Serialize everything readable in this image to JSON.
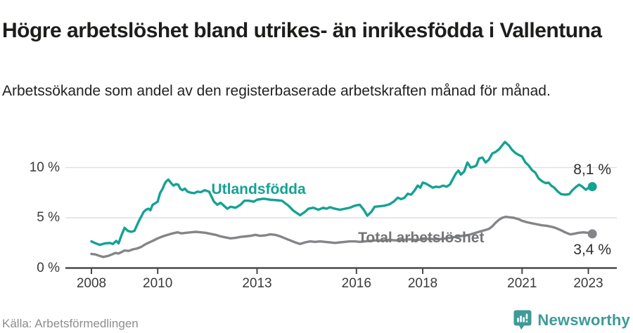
{
  "header": {
    "title": "Högre arbetslöshet bland utrikes- än inrikesfödda i Vallentuna",
    "subtitle": "Arbetssökande som andel av den registerbaserade arbetskraften månad för månad."
  },
  "footer": {
    "source": "Källa: Arbetsförmedlingen",
    "brand_name": "Newsworthy",
    "brand_color": "#3e9b97"
  },
  "colors": {
    "axis": "#4a4a4a",
    "gridline": "#e1e1e1",
    "tick_text": "#3a3a3a",
    "value_label_text": "#2e2e2e"
  },
  "chart_data": {
    "type": "line",
    "title": "Högre arbetslöshet bland utrikes- än inrikesfödda i Vallentuna",
    "subtitle": "Arbetssökande som andel av den registerbaserade arbetskraften månad för månad.",
    "xlabel": "",
    "ylabel": "",
    "grid": true,
    "xlim": [
      2007.2,
      2023.85
    ],
    "ylim": [
      0,
      13
    ],
    "yticks": [
      {
        "value": 0,
        "label": "0 %"
      },
      {
        "value": 5,
        "label": "5 %"
      },
      {
        "value": 10,
        "label": "10 %"
      }
    ],
    "xticks": [
      {
        "value": 2008,
        "label": "2008"
      },
      {
        "value": 2010,
        "label": "2010"
      },
      {
        "value": 2013,
        "label": "2013"
      },
      {
        "value": 2016,
        "label": "2016"
      },
      {
        "value": 2018,
        "label": "2018"
      },
      {
        "value": 2021,
        "label": "2021"
      },
      {
        "value": 2023,
        "label": "2023"
      }
    ],
    "series": [
      {
        "name": "Utlandsfödda",
        "color": "#15a294",
        "label_color": "#15a294",
        "label_at": [
          2011.62,
          7.65
        ],
        "end_label": "8,1 %",
        "end_label_side": "above",
        "points": [
          [
            2008.0,
            2.65
          ],
          [
            2008.1,
            2.5
          ],
          [
            2008.25,
            2.3
          ],
          [
            2008.4,
            2.45
          ],
          [
            2008.55,
            2.5
          ],
          [
            2008.65,
            2.4
          ],
          [
            2008.75,
            2.7
          ],
          [
            2008.82,
            2.45
          ],
          [
            2008.9,
            3.2
          ],
          [
            2009.0,
            4.0
          ],
          [
            2009.1,
            3.7
          ],
          [
            2009.2,
            3.6
          ],
          [
            2009.3,
            3.7
          ],
          [
            2009.38,
            4.3
          ],
          [
            2009.45,
            4.8
          ],
          [
            2009.5,
            5.1
          ],
          [
            2009.58,
            5.6
          ],
          [
            2009.65,
            5.8
          ],
          [
            2009.72,
            5.9
          ],
          [
            2009.78,
            5.75
          ],
          [
            2009.85,
            6.3
          ],
          [
            2009.95,
            6.5
          ],
          [
            2010.0,
            6.6
          ],
          [
            2010.07,
            7.45
          ],
          [
            2010.15,
            7.9
          ],
          [
            2010.2,
            8.3
          ],
          [
            2010.25,
            8.6
          ],
          [
            2010.32,
            8.8
          ],
          [
            2010.42,
            8.4
          ],
          [
            2010.48,
            8.2
          ],
          [
            2010.55,
            8.35
          ],
          [
            2010.62,
            8.3
          ],
          [
            2010.68,
            7.9
          ],
          [
            2010.75,
            7.75
          ],
          [
            2010.82,
            7.9
          ],
          [
            2010.9,
            7.6
          ],
          [
            2011.0,
            7.5
          ],
          [
            2011.1,
            7.45
          ],
          [
            2011.2,
            7.6
          ],
          [
            2011.3,
            7.55
          ],
          [
            2011.42,
            7.75
          ],
          [
            2011.55,
            7.6
          ],
          [
            2011.7,
            6.6
          ],
          [
            2011.8,
            6.3
          ],
          [
            2011.9,
            6.5
          ],
          [
            2012.0,
            6.2
          ],
          [
            2012.1,
            5.9
          ],
          [
            2012.2,
            6.1
          ],
          [
            2012.35,
            6.0
          ],
          [
            2012.5,
            6.3
          ],
          [
            2012.62,
            6.7
          ],
          [
            2012.75,
            6.7
          ],
          [
            2012.9,
            6.6
          ],
          [
            2013.0,
            6.8
          ],
          [
            2013.2,
            6.9
          ],
          [
            2013.4,
            6.8
          ],
          [
            2013.6,
            6.75
          ],
          [
            2013.75,
            6.7
          ],
          [
            2013.95,
            6.2
          ],
          [
            2014.1,
            5.7
          ],
          [
            2014.3,
            5.25
          ],
          [
            2014.45,
            5.6
          ],
          [
            2014.55,
            5.9
          ],
          [
            2014.7,
            6.0
          ],
          [
            2014.85,
            5.8
          ],
          [
            2015.0,
            6.0
          ],
          [
            2015.1,
            5.9
          ],
          [
            2015.2,
            6.05
          ],
          [
            2015.35,
            5.9
          ],
          [
            2015.5,
            5.8
          ],
          [
            2015.65,
            5.9
          ],
          [
            2015.8,
            6.0
          ],
          [
            2015.95,
            6.2
          ],
          [
            2016.1,
            6.3
          ],
          [
            2016.22,
            5.8
          ],
          [
            2016.33,
            5.2
          ],
          [
            2016.45,
            5.6
          ],
          [
            2016.55,
            6.1
          ],
          [
            2016.7,
            6.15
          ],
          [
            2016.85,
            6.2
          ],
          [
            2017.0,
            6.35
          ],
          [
            2017.12,
            6.6
          ],
          [
            2017.25,
            7.0
          ],
          [
            2017.35,
            6.85
          ],
          [
            2017.45,
            7.0
          ],
          [
            2017.55,
            7.4
          ],
          [
            2017.65,
            7.3
          ],
          [
            2017.75,
            7.7
          ],
          [
            2017.85,
            8.2
          ],
          [
            2017.93,
            8.0
          ],
          [
            2018.0,
            8.5
          ],
          [
            2018.1,
            8.4
          ],
          [
            2018.2,
            8.2
          ],
          [
            2018.3,
            8.0
          ],
          [
            2018.4,
            8.1
          ],
          [
            2018.5,
            8.05
          ],
          [
            2018.62,
            8.2
          ],
          [
            2018.72,
            8.1
          ],
          [
            2018.82,
            8.3
          ],
          [
            2018.9,
            8.8
          ],
          [
            2019.0,
            9.4
          ],
          [
            2019.08,
            9.7
          ],
          [
            2019.15,
            9.3
          ],
          [
            2019.25,
            9.6
          ],
          [
            2019.35,
            10.5
          ],
          [
            2019.45,
            10.0
          ],
          [
            2019.55,
            10.1
          ],
          [
            2019.62,
            10.2
          ],
          [
            2019.7,
            10.9
          ],
          [
            2019.8,
            11.0
          ],
          [
            2019.9,
            10.5
          ],
          [
            2020.0,
            10.8
          ],
          [
            2020.1,
            11.4
          ],
          [
            2020.2,
            11.55
          ],
          [
            2020.3,
            11.8
          ],
          [
            2020.4,
            12.2
          ],
          [
            2020.48,
            12.55
          ],
          [
            2020.6,
            12.2
          ],
          [
            2020.7,
            11.75
          ],
          [
            2020.8,
            11.45
          ],
          [
            2020.9,
            11.25
          ],
          [
            2021.0,
            11.1
          ],
          [
            2021.1,
            10.5
          ],
          [
            2021.2,
            10.2
          ],
          [
            2021.3,
            9.75
          ],
          [
            2021.4,
            9.5
          ],
          [
            2021.5,
            8.9
          ],
          [
            2021.62,
            8.6
          ],
          [
            2021.72,
            8.45
          ],
          [
            2021.8,
            8.5
          ],
          [
            2021.88,
            8.2
          ],
          [
            2021.97,
            8.0
          ],
          [
            2022.08,
            7.6
          ],
          [
            2022.18,
            7.35
          ],
          [
            2022.3,
            7.3
          ],
          [
            2022.42,
            7.35
          ],
          [
            2022.52,
            7.75
          ],
          [
            2022.62,
            8.05
          ],
          [
            2022.72,
            8.3
          ],
          [
            2022.82,
            8.1
          ],
          [
            2022.92,
            7.8
          ],
          [
            2023.02,
            8.0
          ],
          [
            2023.12,
            8.1
          ]
        ]
      },
      {
        "name": "Total arbetslöshet",
        "color": "#838588",
        "label_color": "#737476",
        "label_at": [
          2016.05,
          2.85
        ],
        "end_label": "3,4 %",
        "end_label_side": "below",
        "points": [
          [
            2008.0,
            1.4
          ],
          [
            2008.12,
            1.35
          ],
          [
            2008.25,
            1.2
          ],
          [
            2008.35,
            1.1
          ],
          [
            2008.5,
            1.2
          ],
          [
            2008.62,
            1.35
          ],
          [
            2008.72,
            1.5
          ],
          [
            2008.82,
            1.45
          ],
          [
            2008.92,
            1.6
          ],
          [
            2009.0,
            1.75
          ],
          [
            2009.12,
            1.7
          ],
          [
            2009.25,
            1.85
          ],
          [
            2009.38,
            1.95
          ],
          [
            2009.5,
            2.1
          ],
          [
            2009.62,
            2.35
          ],
          [
            2009.75,
            2.55
          ],
          [
            2009.88,
            2.75
          ],
          [
            2010.0,
            2.95
          ],
          [
            2010.15,
            3.15
          ],
          [
            2010.3,
            3.3
          ],
          [
            2010.45,
            3.45
          ],
          [
            2010.6,
            3.55
          ],
          [
            2010.72,
            3.45
          ],
          [
            2010.85,
            3.5
          ],
          [
            2011.0,
            3.55
          ],
          [
            2011.15,
            3.6
          ],
          [
            2011.3,
            3.55
          ],
          [
            2011.45,
            3.5
          ],
          [
            2011.6,
            3.4
          ],
          [
            2011.75,
            3.3
          ],
          [
            2011.9,
            3.15
          ],
          [
            2012.05,
            3.05
          ],
          [
            2012.2,
            2.95
          ],
          [
            2012.35,
            3.0
          ],
          [
            2012.5,
            3.1
          ],
          [
            2012.65,
            3.15
          ],
          [
            2012.8,
            3.2
          ],
          [
            2012.95,
            3.3
          ],
          [
            2013.1,
            3.2
          ],
          [
            2013.25,
            3.25
          ],
          [
            2013.4,
            3.35
          ],
          [
            2013.55,
            3.3
          ],
          [
            2013.7,
            3.15
          ],
          [
            2013.85,
            2.95
          ],
          [
            2014.0,
            2.75
          ],
          [
            2014.15,
            2.55
          ],
          [
            2014.3,
            2.4
          ],
          [
            2014.45,
            2.55
          ],
          [
            2014.6,
            2.65
          ],
          [
            2014.75,
            2.6
          ],
          [
            2014.9,
            2.65
          ],
          [
            2015.05,
            2.6
          ],
          [
            2015.2,
            2.55
          ],
          [
            2015.35,
            2.5
          ],
          [
            2015.5,
            2.55
          ],
          [
            2015.65,
            2.6
          ],
          [
            2015.8,
            2.65
          ],
          [
            2015.95,
            2.65
          ],
          [
            2016.1,
            2.6
          ],
          [
            2016.25,
            2.65
          ],
          [
            2016.4,
            2.7
          ],
          [
            2016.6,
            2.75
          ],
          [
            2016.8,
            2.75
          ],
          [
            2017.0,
            2.8
          ],
          [
            2017.2,
            2.75
          ],
          [
            2017.4,
            2.8
          ],
          [
            2017.6,
            2.85
          ],
          [
            2017.8,
            2.8
          ],
          [
            2018.0,
            2.85
          ],
          [
            2018.2,
            2.9
          ],
          [
            2018.4,
            2.85
          ],
          [
            2018.6,
            2.9
          ],
          [
            2018.8,
            3.0
          ],
          [
            2019.0,
            3.1
          ],
          [
            2019.2,
            3.2
          ],
          [
            2019.4,
            3.3
          ],
          [
            2019.6,
            3.5
          ],
          [
            2019.75,
            3.65
          ],
          [
            2019.9,
            3.8
          ],
          [
            2020.0,
            3.9
          ],
          [
            2020.1,
            4.15
          ],
          [
            2020.2,
            4.5
          ],
          [
            2020.3,
            4.8
          ],
          [
            2020.4,
            5.0
          ],
          [
            2020.5,
            5.1
          ],
          [
            2020.62,
            5.05
          ],
          [
            2020.75,
            5.0
          ],
          [
            2020.9,
            4.85
          ],
          [
            2021.0,
            4.7
          ],
          [
            2021.15,
            4.55
          ],
          [
            2021.3,
            4.45
          ],
          [
            2021.45,
            4.35
          ],
          [
            2021.6,
            4.25
          ],
          [
            2021.75,
            4.2
          ],
          [
            2021.9,
            4.1
          ],
          [
            2022.0,
            4.0
          ],
          [
            2022.15,
            3.8
          ],
          [
            2022.3,
            3.55
          ],
          [
            2022.45,
            3.35
          ],
          [
            2022.55,
            3.4
          ],
          [
            2022.7,
            3.5
          ],
          [
            2022.85,
            3.55
          ],
          [
            2023.0,
            3.5
          ],
          [
            2023.12,
            3.4
          ]
        ]
      }
    ]
  }
}
